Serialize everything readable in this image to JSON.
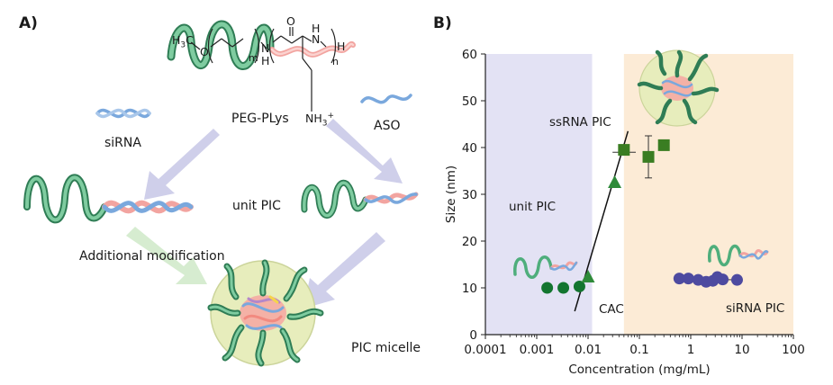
{
  "panel_a": {
    "label": "A)",
    "labels": {
      "peg_plys": "PEG-PLys",
      "sirna": "siRNA",
      "aso": "ASO",
      "unit_pic": "unit PIC",
      "additional": "Additional modification",
      "pic_micelle": "PIC micelle"
    },
    "chem": {
      "h3c": "H",
      "h3c_sub": "3",
      "h3c_c": "C",
      "o": "O",
      "m": "m",
      "n_ether": "N",
      "h_ether": "H",
      "o_carbonyl": "O",
      "n_amide": "N",
      "h_amide": "H",
      "h_end": "H",
      "n": "n",
      "nh3": "NH",
      "nh3_sub": "3",
      "nh3_sup": "+"
    }
  },
  "panel_b": {
    "label": "B)",
    "annotations": {
      "ssrna_pic": "ssRNA PIC",
      "unit_pic": "unit PIC",
      "cac": "CAC",
      "sirna_pic": "siRNA PIC"
    }
  },
  "colors": {
    "peg_green": "#4fae7c",
    "peg_dark": "#2f7d55",
    "rna_blue": "#7aa8dd",
    "rna_pink": "#f2a4a0",
    "arrow_lavender": "#cfcfea",
    "arrow_green": "#d6ecd0",
    "unit_region": "#e3e2f4",
    "micelle_region": "#fcebd6",
    "green_circle": "#13752f",
    "green_triangle": "#2e8a39",
    "green_square": "#3a7d22",
    "purple_circle": "#4d4aa0"
  },
  "chart_data": {
    "type": "scatter",
    "title": "",
    "xlabel": "Concentration (mg/mL)",
    "ylabel": "Size (nm)",
    "x_scale": "log",
    "xlim": [
      0.0001,
      100
    ],
    "ylim": [
      0,
      60
    ],
    "x_ticks": [
      0.0001,
      0.001,
      0.01,
      0.1,
      1,
      10,
      100
    ],
    "x_tick_labels": [
      "0.0001",
      "0.001",
      "0.01",
      "0.1",
      "1",
      "10",
      "100"
    ],
    "y_ticks": [
      0,
      10,
      20,
      30,
      40,
      50,
      60
    ],
    "y_tick_labels": [
      "0",
      "10",
      "20",
      "30",
      "40",
      "50",
      "60"
    ],
    "regions": [
      {
        "name": "unit PIC",
        "x_range": [
          0.0001,
          0.012
        ],
        "color": "#e3e2f4"
      },
      {
        "name": "PIC micelle",
        "x_range": [
          0.05,
          100
        ],
        "color": "#fcebd6"
      }
    ],
    "series": [
      {
        "marker": "circle",
        "color": "#13752f",
        "points": [
          [
            0.0016,
            10
          ],
          [
            0.0033,
            10
          ],
          [
            0.0068,
            10.3
          ]
        ]
      },
      {
        "marker": "triangle",
        "color": "#2e8a39",
        "points": [
          [
            0.01,
            12.3
          ],
          [
            0.033,
            32.5
          ]
        ]
      },
      {
        "marker": "square",
        "color": "#3a7d22",
        "points": [
          [
            0.05,
            39.5
          ],
          [
            0.15,
            38
          ],
          [
            0.3,
            40.5
          ]
        ],
        "error": [
          null,
          4.5,
          null
        ]
      },
      {
        "marker": "circle",
        "color": "#4d4aa0",
        "points": [
          [
            0.6,
            12
          ],
          [
            0.9,
            12
          ],
          [
            1.4,
            11.7
          ],
          [
            2,
            11.3
          ],
          [
            2.7,
            11.5
          ],
          [
            3.3,
            12.3
          ],
          [
            4.2,
            11.8
          ],
          [
            8,
            11.7
          ]
        ]
      }
    ],
    "fit_line": {
      "from": [
        0.0055,
        5
      ],
      "to": [
        0.06,
        43.5
      ]
    },
    "ssrna_error_bar": {
      "x": 0.05,
      "y": 39,
      "xerr": [
        0.03,
        0.085
      ]
    }
  }
}
